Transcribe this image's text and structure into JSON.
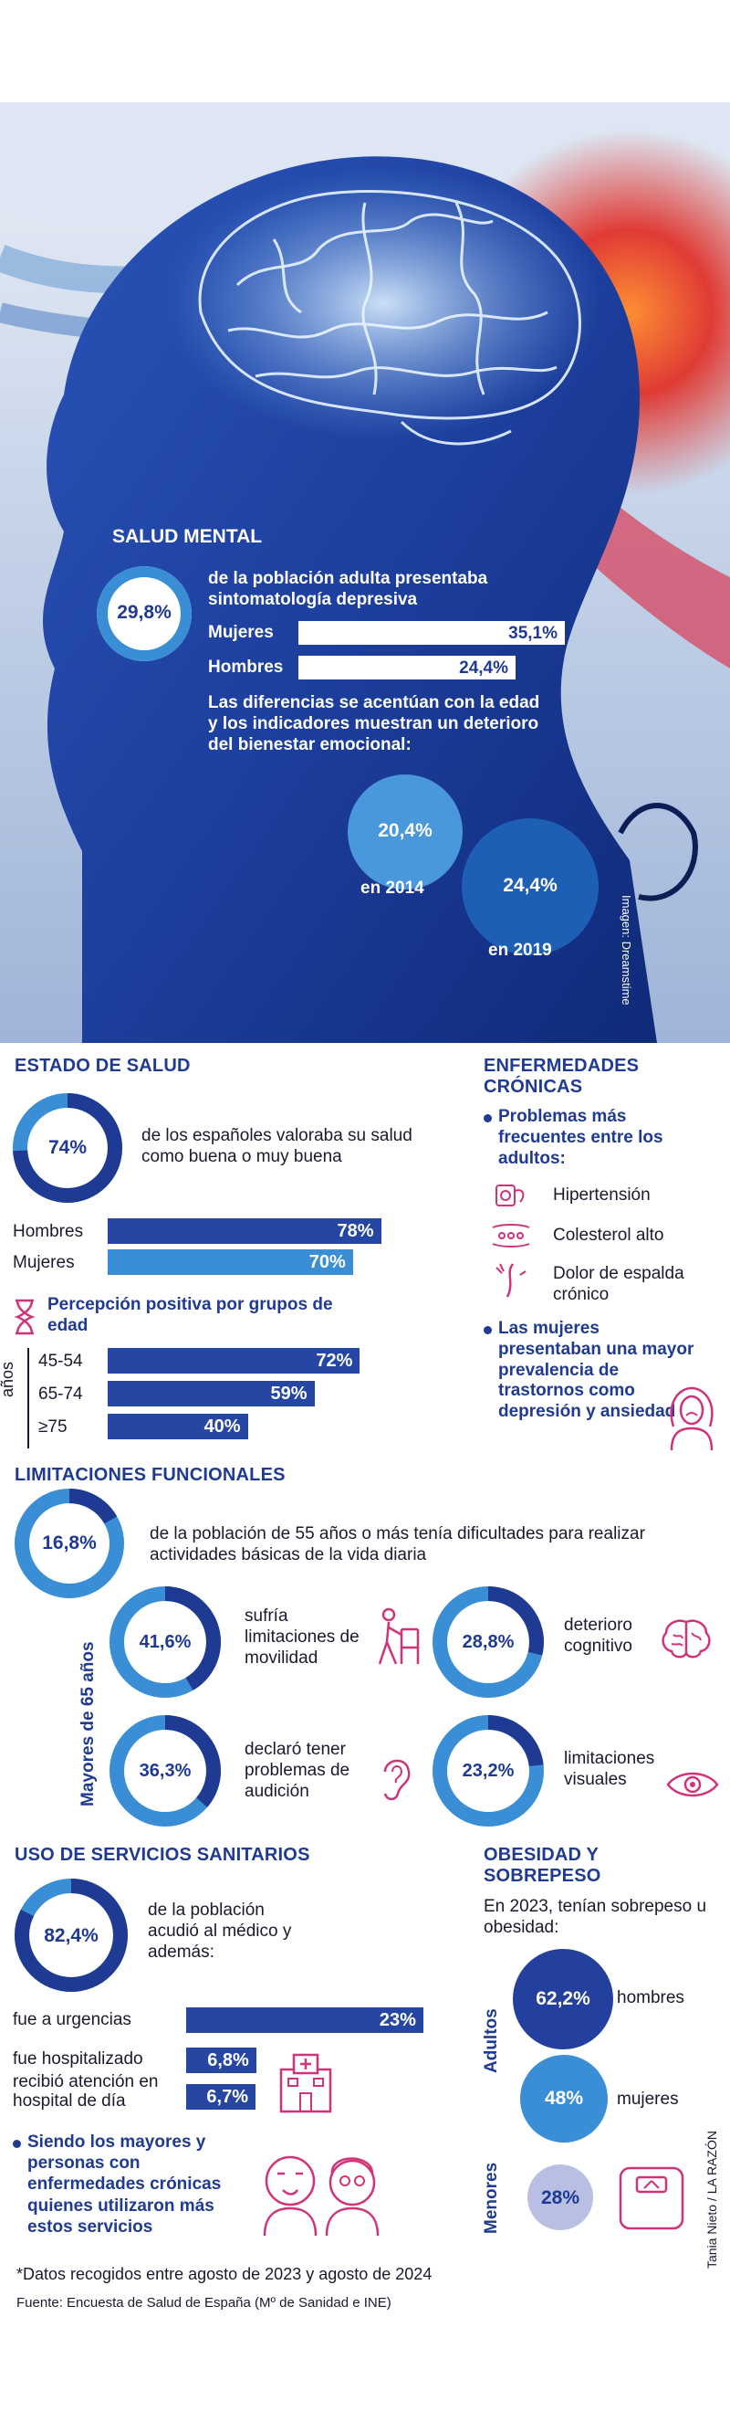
{
  "hero": {
    "title": "SALUD MENTAL",
    "main_pct": "29,8%",
    "main_text": "de la población adulta presentaba sintomatología depresiva",
    "women_label": "Mujeres",
    "women_value": "35,1%",
    "women_fraction": 0.351,
    "men_label": "Hombres",
    "men_value": "24,4%",
    "men_fraction": 0.244,
    "diff_text": "Las diferencias se acentúan con la edad y los indicadores muestran un deterioro del bienestar emocional:",
    "y2014_value": "20,4%",
    "y2014_label": "en 2014",
    "y2019_value": "24,4%",
    "y2019_label": "en 2019",
    "credit": "Imagen: Dreamstime"
  },
  "estado": {
    "title": "ESTADO DE SALUD",
    "pct": "74%",
    "fraction": 0.74,
    "text": "de los españoles valoraba su salud como buena o muy buena",
    "men_label": "Hombres",
    "men_value": "78%",
    "men_fraction": 0.78,
    "women_label": "Mujeres",
    "women_value": "70%",
    "women_fraction": 0.7,
    "perception_title": "Percepción positiva por grupos de edad",
    "axis_label": "años",
    "ages": [
      {
        "label": "45-54",
        "value": "72%",
        "fraction": 0.72
      },
      {
        "label": "65-74",
        "value": "59%",
        "fraction": 0.59
      },
      {
        "label": "≥75",
        "value": "40%",
        "fraction": 0.4
      }
    ]
  },
  "cronicas": {
    "title": "ENFERMEDADES CRÓNICAS",
    "bullet1": "Problemas más frecuentes entre los adultos:",
    "items": [
      "Hipertensión",
      "Colesterol alto",
      "Dolor de espalda crónico"
    ],
    "bullet2": "Las mujeres presentaban una mayor prevalencia de trastornos como depresión y ansiedad"
  },
  "limitaciones": {
    "title": "LIMITACIONES FUNCIONALES",
    "pct": "16,8%",
    "fraction": 0.168,
    "text": "de la población de 55 años o más tenía dificultades para realizar actividades básicas de la vida diaria",
    "side_label": "Mayores de 65 años",
    "items": [
      {
        "pct": "41,6%",
        "fraction": 0.416,
        "text": "sufría limitaciones de movilidad",
        "icon": "walker-icon"
      },
      {
        "pct": "28,8%",
        "fraction": 0.288,
        "text": "deterioro cognitivo",
        "icon": "brain-icon"
      },
      {
        "pct": "36,3%",
        "fraction": 0.363,
        "text": "declaró tener problemas de audición",
        "icon": "ear-icon"
      },
      {
        "pct": "23,2%",
        "fraction": 0.232,
        "text": "limitaciones visuales",
        "icon": "eye-icon"
      }
    ]
  },
  "servicios": {
    "title": "USO DE SERVICIOS SANITARIOS",
    "pct": "82,4%",
    "fraction": 0.824,
    "text": "de la población acudió al médico y además:",
    "bars": [
      {
        "label": "fue a urgencias",
        "value": "23%",
        "fraction": 0.23
      },
      {
        "label": "fue hospitalizado",
        "value": "6,8%",
        "fraction": 0.068
      },
      {
        "label": "recibió atención en hospital de día",
        "value": "6,7%",
        "fraction": 0.067
      }
    ],
    "bullet": "Siendo los mayores y personas con enfermedades crónicas quienes utilizaron más estos servicios"
  },
  "obesidad": {
    "title": "OBESIDAD Y SOBREPESO",
    "intro": "En 2023, tenían sobrepeso u obesidad:",
    "adults_label": "Adultos",
    "minors_label": "Menores",
    "men_value": "62,2%",
    "men_label": "hombres",
    "women_value": "48%",
    "women_label": "mujeres",
    "minors_value": "28%"
  },
  "footer": {
    "note": "*Datos recogidos entre agosto de 2023 y agosto de 2024",
    "source": "Fuente: Encuesta de Salud de España (Mº de Sanidad e INE)",
    "author": "Tania Nieto / LA RAZÓN"
  },
  "colors": {
    "navy": "#1f3a93",
    "light_blue": "#3a8ed6",
    "pink": "#d0337a",
    "lavender": "#b9bfe3"
  }
}
